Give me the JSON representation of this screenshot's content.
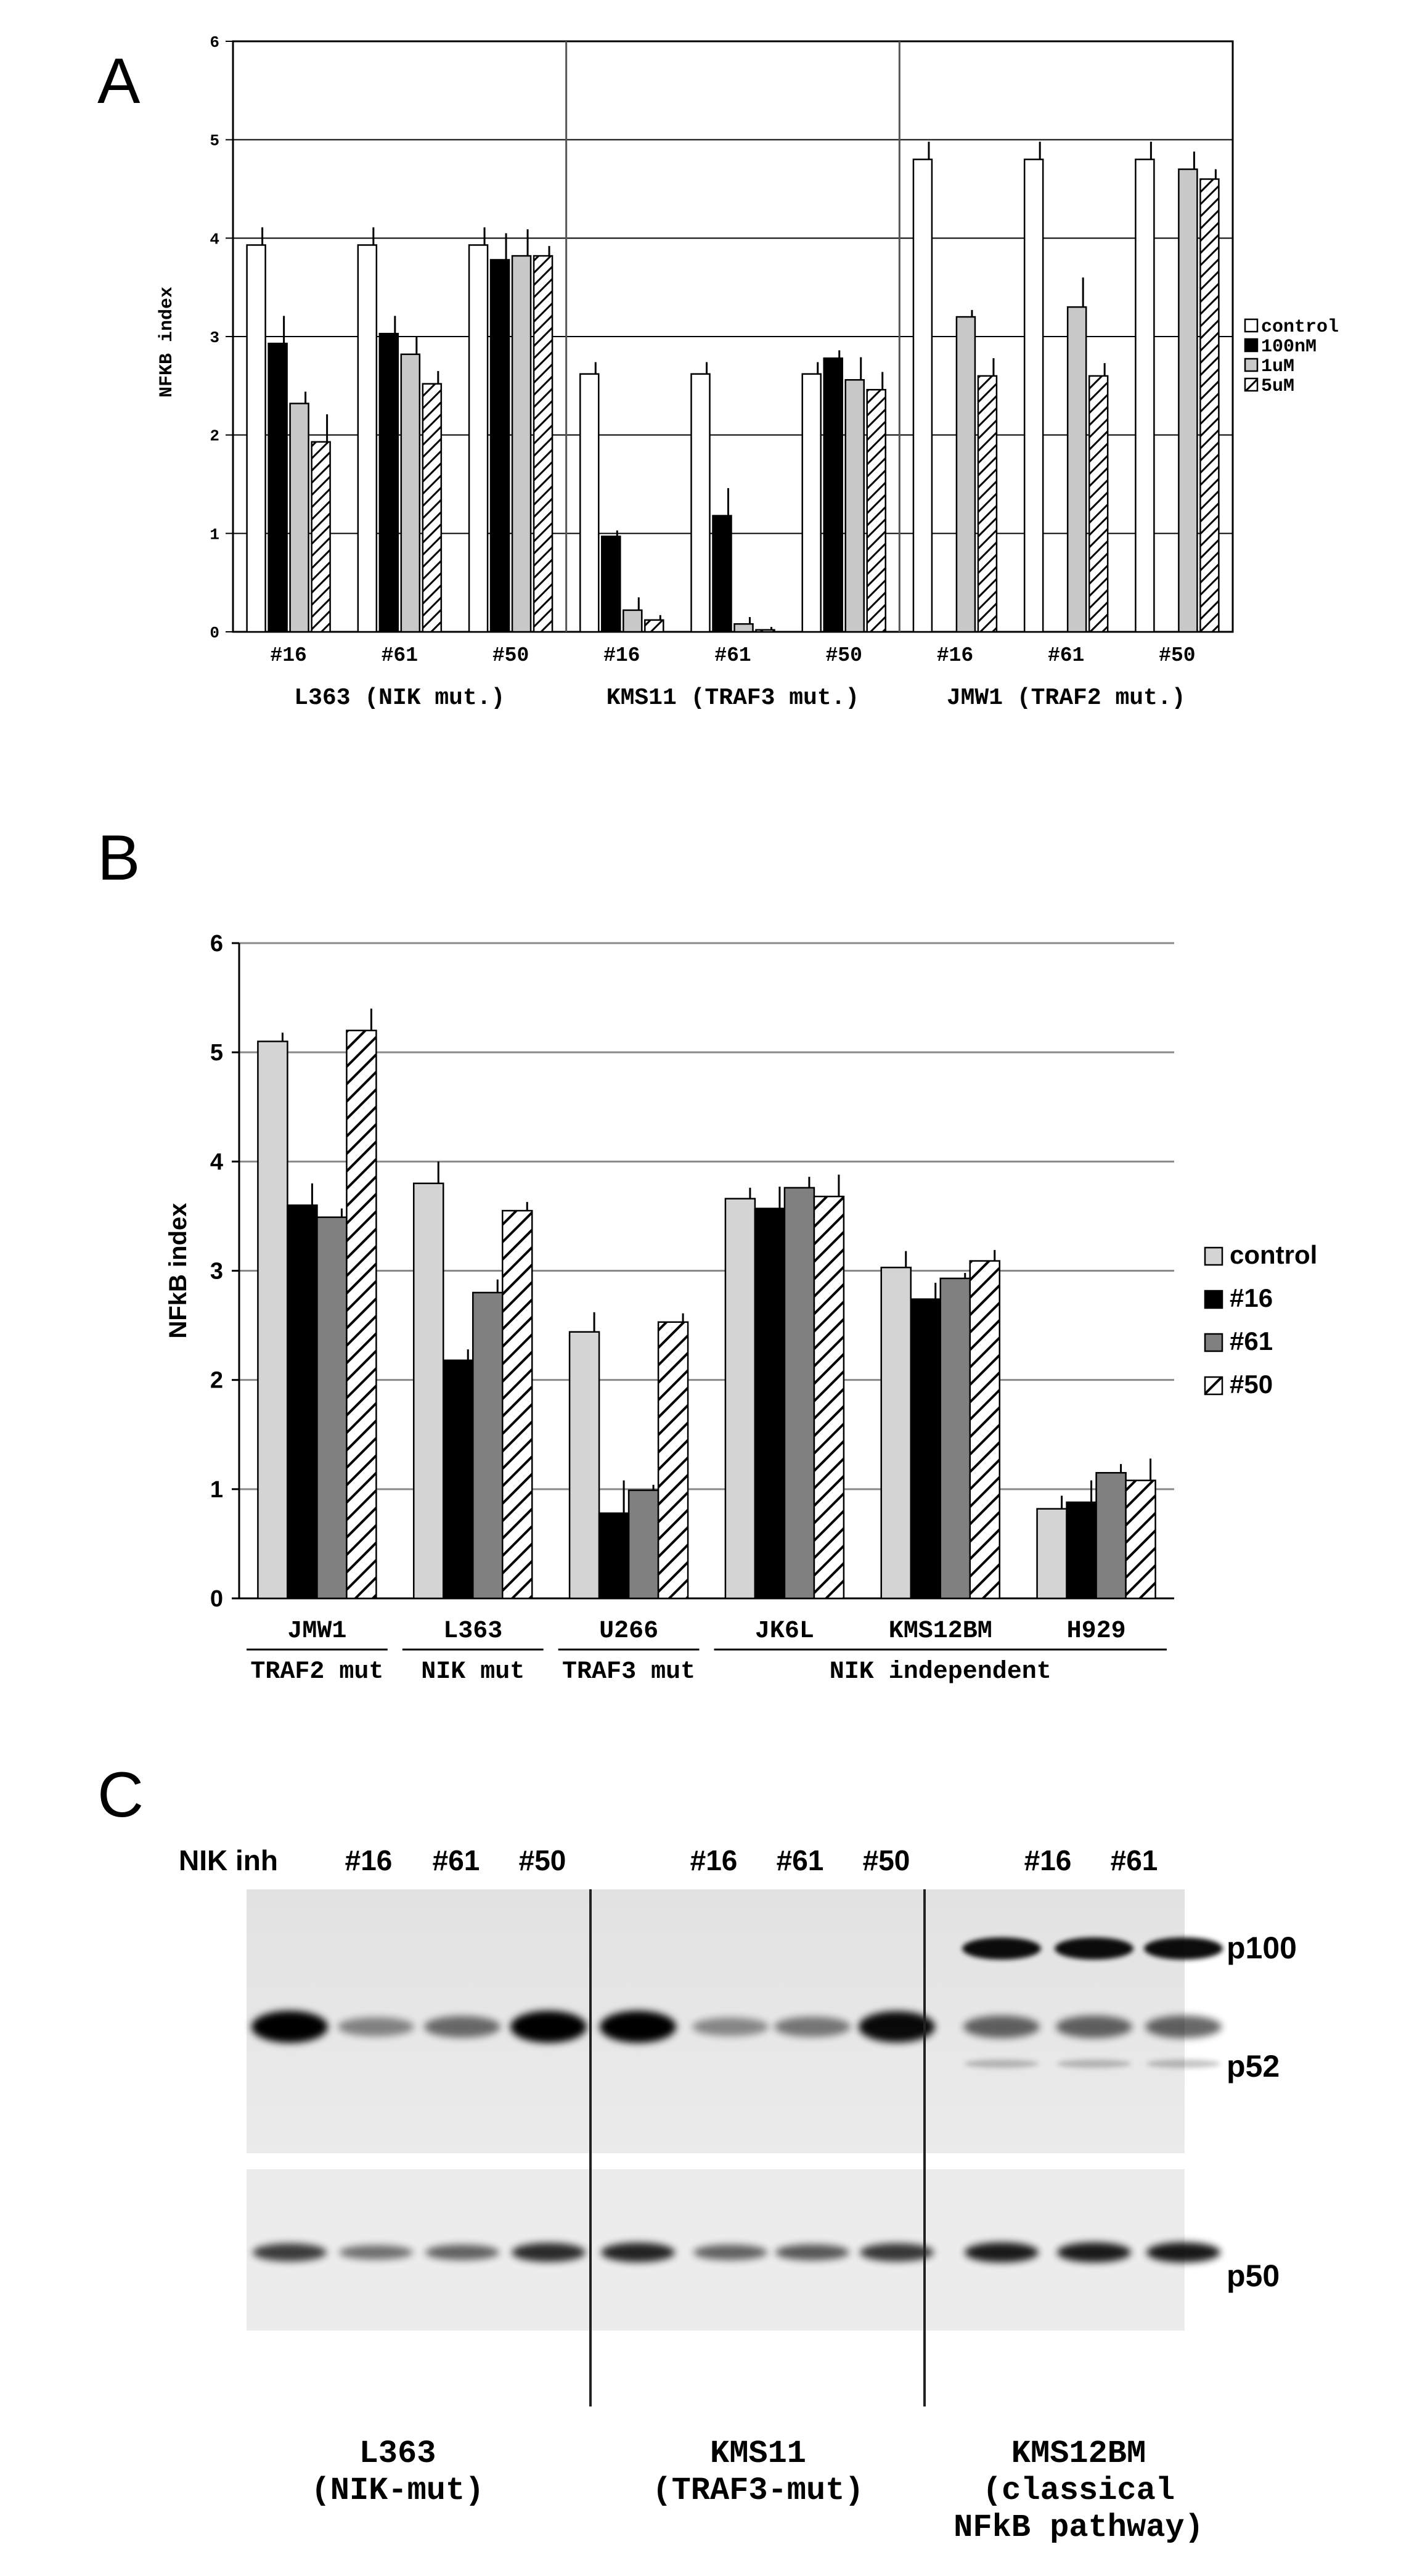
{
  "panels": {
    "a": {
      "letter": "A"
    },
    "b": {
      "letter": "B"
    },
    "c": {
      "letter": "C"
    }
  },
  "chart_data": [
    {
      "id": "A",
      "type": "bar",
      "ylabel": "NFKB index",
      "ylim": [
        0,
        6
      ],
      "yticks": [
        0,
        1,
        2,
        3,
        4,
        5,
        6
      ],
      "grid": true,
      "legend_position": "right",
      "groups": [
        {
          "label": "L363 (NIK mut.)",
          "categories": [
            "#16",
            "#61",
            "#50"
          ]
        },
        {
          "label": "KMS11 (TRAF3 mut.)",
          "categories": [
            "#16",
            "#61",
            "#50"
          ]
        },
        {
          "label": "JMW1 (TRAF2 mut.)",
          "categories": [
            "#16",
            "#61",
            "#50"
          ]
        }
      ],
      "series": [
        {
          "name": "control",
          "style": "white",
          "values": [
            3.93,
            3.93,
            3.93,
            2.62,
            2.62,
            2.62,
            4.8,
            4.8,
            4.8
          ],
          "errors": [
            0.18,
            0.18,
            0.18,
            0.12,
            0.12,
            0.12,
            0.18,
            0.18,
            0.18
          ]
        },
        {
          "name": "100nM",
          "style": "black",
          "values": [
            2.93,
            3.03,
            3.78,
            0.97,
            1.18,
            2.78,
            null,
            null,
            null
          ],
          "errors": [
            0.28,
            0.18,
            0.27,
            0.06,
            0.28,
            0.08,
            null,
            null,
            null
          ]
        },
        {
          "name": "1uM",
          "style": "gray",
          "values": [
            2.32,
            2.82,
            3.82,
            0.22,
            0.08,
            2.56,
            3.2,
            3.3,
            4.7
          ],
          "errors": [
            0.12,
            0.18,
            0.27,
            0.13,
            0.07,
            0.23,
            0.07,
            0.3,
            0.18
          ]
        },
        {
          "name": "5uM",
          "style": "hatch",
          "values": [
            1.93,
            2.52,
            3.82,
            0.12,
            0.02,
            2.46,
            2.6,
            2.6,
            4.6
          ],
          "errors": [
            0.28,
            0.13,
            0.1,
            0.05,
            0.03,
            0.18,
            0.18,
            0.13,
            0.1
          ]
        }
      ]
    },
    {
      "id": "B",
      "type": "bar",
      "ylabel": "NFkB index",
      "ylim": [
        0,
        6
      ],
      "yticks": [
        0,
        1,
        2,
        3,
        4,
        5,
        6
      ],
      "grid": true,
      "legend_position": "right",
      "categories": [
        "JMW1",
        "L363",
        "U266",
        "JK6L",
        "KMS12BM",
        "H929"
      ],
      "category_groups": [
        "TRAF2 mut",
        "NIK mut",
        "TRAF3 mut",
        "NIK independent"
      ],
      "series": [
        {
          "name": "control",
          "style": "light",
          "values": [
            5.1,
            3.8,
            2.44,
            3.66,
            3.03,
            0.82
          ],
          "errors": [
            0.08,
            0.2,
            0.18,
            0.1,
            0.15,
            0.12
          ]
        },
        {
          "name": "#16",
          "style": "black",
          "values": [
            3.6,
            2.18,
            0.78,
            3.57,
            2.74,
            0.88
          ],
          "errors": [
            0.2,
            0.1,
            0.3,
            0.2,
            0.15,
            0.2
          ]
        },
        {
          "name": "#61",
          "style": "darkgray",
          "values": [
            3.49,
            2.8,
            0.99,
            3.76,
            2.93,
            1.15
          ],
          "errors": [
            0.08,
            0.12,
            0.05,
            0.1,
            0.05,
            0.08
          ]
        },
        {
          "name": "#50",
          "style": "hatch",
          "values": [
            5.2,
            3.55,
            2.53,
            3.68,
            3.09,
            1.08
          ],
          "errors": [
            0.2,
            0.08,
            0.08,
            0.2,
            0.1,
            0.2
          ]
        }
      ]
    }
  ],
  "blot": {
    "row_label": "NIK inh",
    "lane_labels": [
      "#16",
      "#61",
      "#50",
      "#16",
      "#61",
      "#50",
      "#16",
      "#61"
    ],
    "band_labels": [
      "p100",
      "p52",
      "p50"
    ],
    "groups": [
      {
        "line1": "L363",
        "line2": "(NIK-mut)"
      },
      {
        "line1": "KMS11",
        "line2": "(TRAF3-mut)"
      },
      {
        "line1": "KMS12BM",
        "line2": "(classical",
        "line3": "NFkB pathway)"
      }
    ]
  }
}
